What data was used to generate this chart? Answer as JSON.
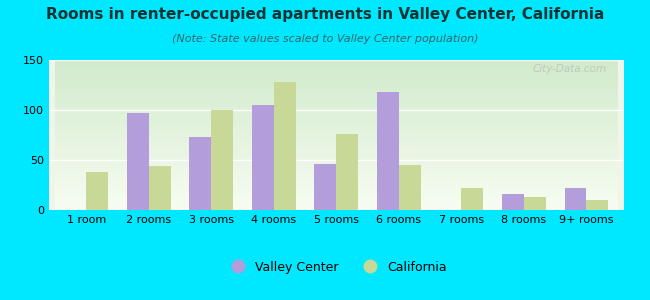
{
  "title": "Rooms in renter-occupied apartments in Valley Center, California",
  "subtitle": "(Note: State values scaled to Valley Center population)",
  "categories": [
    "1 room",
    "2 rooms",
    "3 rooms",
    "4 rooms",
    "5 rooms",
    "6 rooms",
    "7 rooms",
    "8 rooms",
    "9+ rooms"
  ],
  "valley_center": [
    0,
    97,
    73,
    105,
    46,
    118,
    0,
    16,
    22
  ],
  "california": [
    38,
    44,
    100,
    128,
    76,
    45,
    22,
    13,
    10
  ],
  "valley_color": "#b39ddb",
  "california_color": "#c8d896",
  "background_outer": "#00e8ff",
  "ylim": [
    0,
    150
  ],
  "yticks": [
    0,
    50,
    100,
    150
  ],
  "bar_width": 0.35,
  "title_fontsize": 11,
  "subtitle_fontsize": 8,
  "tick_fontsize": 8,
  "watermark": "City-Data.com"
}
